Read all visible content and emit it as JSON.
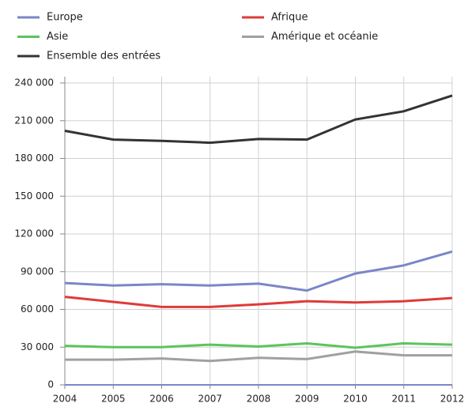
{
  "chart_data": {
    "type": "line",
    "categories": [
      "2004",
      "2005",
      "2006",
      "2007",
      "2008",
      "2009",
      "2010",
      "2011",
      "2012"
    ],
    "series": [
      {
        "name": "Europe",
        "color": "#7b86c8",
        "values": [
          81000,
          79000,
          80000,
          79000,
          80500,
          75000,
          88500,
          95000,
          106000
        ]
      },
      {
        "name": "Afrique",
        "color": "#e03a3a",
        "values": [
          70000,
          66000,
          62000,
          62000,
          64000,
          66500,
          65500,
          66500,
          69000
        ]
      },
      {
        "name": "Asie",
        "color": "#5cc45c",
        "values": [
          31000,
          30000,
          30000,
          32000,
          30500,
          33000,
          29500,
          33000,
          32000
        ]
      },
      {
        "name": "Amérique et océanie",
        "color": "#a0a0a0",
        "values": [
          20000,
          20000,
          21000,
          19000,
          21500,
          20500,
          26500,
          23500,
          23500
        ]
      },
      {
        "name": "Ensemble des entrées",
        "color": "#333333",
        "values": [
          202000,
          195000,
          194000,
          192500,
          195500,
          195000,
          211000,
          217500,
          230000
        ]
      }
    ],
    "ylim": [
      0,
      240000
    ],
    "yticks": [
      0,
      {
        "value": 30000,
        "label": "30 000"
      },
      {
        "value": 60000,
        "label": "60 000"
      },
      {
        "value": 90000,
        "label": "90 000"
      },
      {
        "value": 120000,
        "label": "120 000"
      },
      {
        "value": 150000,
        "label": "150 000"
      },
      {
        "value": 180000,
        "label": "180 000"
      },
      {
        "value": 210000,
        "label": "210 000"
      },
      {
        "value": 240000,
        "label": "240 000"
      }
    ],
    "grid": true
  }
}
